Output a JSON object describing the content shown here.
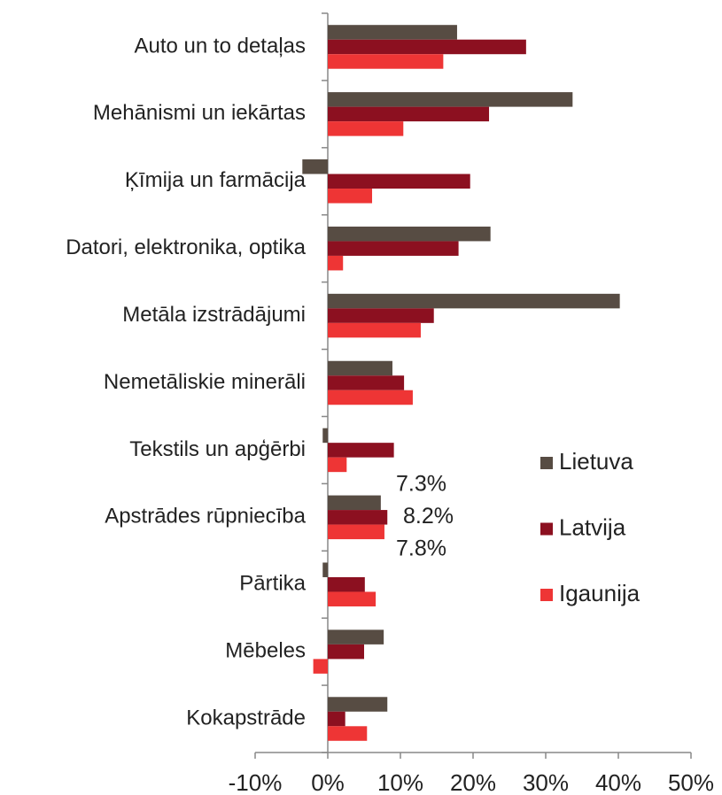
{
  "chart_data": {
    "type": "hbar",
    "categories": [
      "Auto un to detaļas",
      "Mehānismi un iekārtas",
      "Ķīmija un farmācija",
      "Datori, elektronika, optika",
      "Metāla izstrādājumi",
      "Nemetāliskie minerāli",
      "Tekstils un apģērbi",
      "Apstrādes rūpniecība",
      "Pārtika",
      "Mēbeles",
      "Kokapstrāde"
    ],
    "series": [
      {
        "name": "Lietuva",
        "color": "#574c43",
        "values": [
          17.8,
          33.7,
          -3.5,
          22.4,
          40.2,
          8.9,
          -0.7,
          7.3,
          -0.7,
          7.7,
          8.2
        ],
        "value_labels": [
          null,
          null,
          null,
          null,
          null,
          null,
          null,
          "7.3%",
          null,
          null,
          null
        ]
      },
      {
        "name": "Latvija",
        "color": "#8c1020",
        "values": [
          27.3,
          22.2,
          19.6,
          18.0,
          14.6,
          10.5,
          9.1,
          8.2,
          5.1,
          5.0,
          2.4
        ],
        "value_labels": [
          null,
          null,
          null,
          null,
          null,
          null,
          null,
          "8.2%",
          null,
          null,
          null
        ]
      },
      {
        "name": "Igaunija",
        "color": "#ee3535",
        "values": [
          15.9,
          10.4,
          6.1,
          2.1,
          12.8,
          11.7,
          2.6,
          7.8,
          6.6,
          -2.0,
          5.4
        ],
        "value_labels": [
          null,
          null,
          null,
          null,
          null,
          null,
          null,
          "7.8%",
          null,
          null,
          null
        ]
      }
    ],
    "xlim": [
      -10,
      50
    ],
    "xticks": [
      {
        "value": -10,
        "label": "-10%"
      },
      {
        "value": 0,
        "label": "0%"
      },
      {
        "value": 10,
        "label": "10%"
      },
      {
        "value": 20,
        "label": "20%"
      },
      {
        "value": 30,
        "label": "30%"
      },
      {
        "value": 40,
        "label": "40%"
      },
      {
        "value": 50,
        "label": "50%"
      }
    ],
    "legend": "right"
  }
}
